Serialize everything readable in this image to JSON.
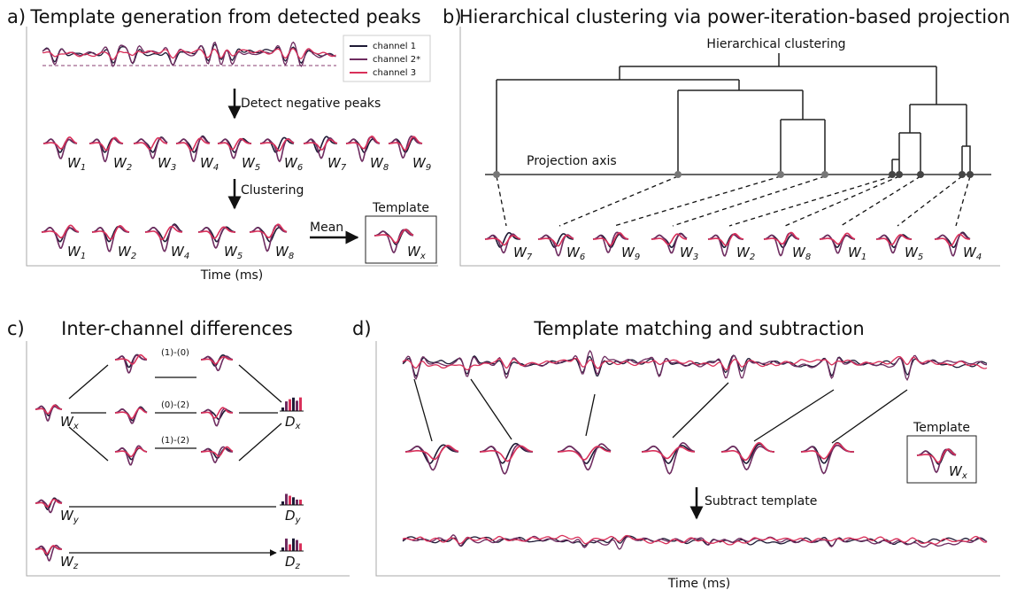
{
  "panel_a": {
    "label": "a)",
    "title": "Template generation from detected peaks",
    "legend": [
      "channel 1",
      "channel 2*",
      "channel 3"
    ],
    "step1": "Detect negative peaks",
    "step2": "Clustering",
    "detected": [
      {
        "w": "W",
        "sub": "1"
      },
      {
        "w": "W",
        "sub": "2"
      },
      {
        "w": "W",
        "sub": "3"
      },
      {
        "w": "W",
        "sub": "4"
      },
      {
        "w": "W",
        "sub": "5"
      },
      {
        "w": "W",
        "sub": "6"
      },
      {
        "w": "W",
        "sub": "7"
      },
      {
        "w": "W",
        "sub": "8"
      },
      {
        "w": "W",
        "sub": "9"
      }
    ],
    "clustered": [
      {
        "w": "W",
        "sub": "1"
      },
      {
        "w": "W",
        "sub": "2"
      },
      {
        "w": "W",
        "sub": "4"
      },
      {
        "w": "W",
        "sub": "5"
      },
      {
        "w": "W",
        "sub": "8"
      }
    ],
    "mean": "Mean",
    "template": "Template",
    "template_label": {
      "w": "W",
      "sub": "x"
    },
    "xlabel": "Time (ms)"
  },
  "panel_b": {
    "label": "b)",
    "title": "Hierarchical clustering via power-iteration-based projection",
    "dendrogram_label": "Hierarchical clustering",
    "axis_label": "Projection axis",
    "waveforms": [
      {
        "w": "W",
        "sub": "7"
      },
      {
        "w": "W",
        "sub": "6"
      },
      {
        "w": "W",
        "sub": "9"
      },
      {
        "w": "W",
        "sub": "3"
      },
      {
        "w": "W",
        "sub": "2"
      },
      {
        "w": "W",
        "sub": "8"
      },
      {
        "w": "W",
        "sub": "1"
      },
      {
        "w": "W",
        "sub": "5"
      },
      {
        "w": "W",
        "sub": "4"
      }
    ]
  },
  "panel_c": {
    "label": "c)",
    "title": "Inter-channel differences",
    "differences": [
      "(1)-(0)",
      "(0)-(2)",
      "(1)-(2)"
    ],
    "rows": [
      {
        "w": {
          "w": "W",
          "sub": "x"
        },
        "d": {
          "w": "D",
          "sub": "x"
        }
      },
      {
        "w": {
          "w": "W",
          "sub": "y"
        },
        "d": {
          "w": "D",
          "sub": "y"
        }
      },
      {
        "w": {
          "w": "W",
          "sub": "z"
        },
        "d": {
          "w": "D",
          "sub": "z"
        }
      }
    ]
  },
  "panel_d": {
    "label": "d)",
    "title": "Template matching and subtraction",
    "template": "Template",
    "template_label": {
      "w": "W",
      "sub": "x"
    },
    "step": "Subtract template",
    "xlabel": "Time (ms)"
  }
}
